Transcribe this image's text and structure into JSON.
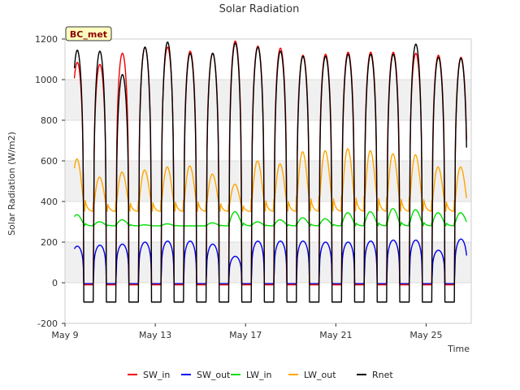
{
  "chart_data": {
    "type": "line",
    "title": "Solar Radiation",
    "xlabel": "Time",
    "ylabel": "Solar Radiation (W/m2)",
    "badge": "BC_met",
    "x_range_days": [
      9.0,
      27.0
    ],
    "ylim": [
      -200,
      1200
    ],
    "yticks": [
      -200,
      0,
      200,
      400,
      600,
      800,
      1000,
      1200
    ],
    "xticks": [
      {
        "day": 9,
        "label": "May 9"
      },
      {
        "day": 13,
        "label": "May 13"
      },
      {
        "day": 17,
        "label": "May 17"
      },
      {
        "day": 21,
        "label": "May 21"
      },
      {
        "day": 25,
        "label": "May 25"
      }
    ],
    "grid": "horizontal bands",
    "legend_position": "bottom",
    "days": [
      9,
      10,
      11,
      12,
      13,
      14,
      15,
      16,
      17,
      18,
      19,
      20,
      21,
      22,
      23,
      24,
      25,
      26
    ],
    "series": [
      {
        "name": "SW_in",
        "color": "#ee0000",
        "night": -10,
        "daily_peak": [
          1085,
          1075,
          1130,
          1160,
          1160,
          1140,
          1130,
          1190,
          1165,
          1155,
          1120,
          1125,
          1135,
          1135,
          1135,
          1130,
          1120,
          1110
        ]
      },
      {
        "name": "SW_out",
        "color": "#0000ee",
        "night": -5,
        "daily_peak": [
          180,
          185,
          190,
          200,
          205,
          205,
          190,
          130,
          205,
          205,
          205,
          200,
          200,
          205,
          210,
          210,
          160,
          215
        ]
      },
      {
        "name": "LW_in",
        "color": "#00dd00",
        "night": 280,
        "daily_peak": [
          335,
          300,
          310,
          285,
          290,
          280,
          295,
          350,
          300,
          310,
          320,
          315,
          345,
          350,
          365,
          360,
          345,
          345
        ]
      },
      {
        "name": "LW_out",
        "color": "#ffa500",
        "night": 350,
        "daily_peak": [
          610,
          520,
          545,
          555,
          570,
          575,
          535,
          485,
          600,
          585,
          645,
          650,
          660,
          650,
          635,
          630,
          570,
          570
        ]
      },
      {
        "name": "Rnet",
        "color": "#000000",
        "night": -95,
        "daily_peak": [
          1145,
          1140,
          1025,
          1160,
          1185,
          1130,
          1130,
          1180,
          1160,
          1140,
          1115,
          1115,
          1125,
          1125,
          1125,
          1175,
          1110,
          1105
        ]
      }
    ]
  }
}
